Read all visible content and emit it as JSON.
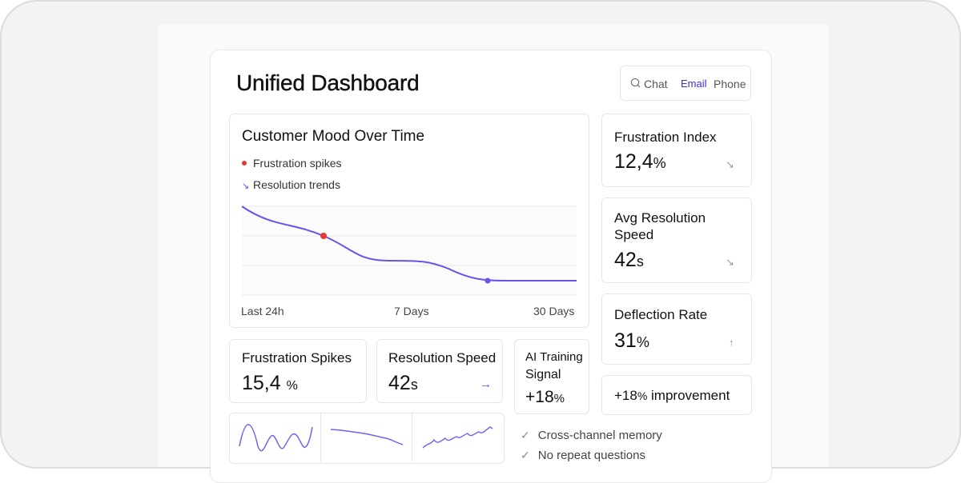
{
  "header": {
    "title": "Unified Dashboard"
  },
  "channel_tabs": [
    {
      "label": "Chat",
      "icon": "search-icon"
    },
    {
      "label": "Email",
      "active": true
    },
    {
      "label": "Phone"
    }
  ],
  "mood_chart": {
    "title": "Customer Mood Over Time",
    "legend": [
      {
        "label": "Frustration spikes",
        "color": "#e53935"
      },
      {
        "label": "Resolution trends",
        "color": "#5b48e8"
      }
    ],
    "x_labels": [
      "Last 24h",
      "7 Days",
      "30 Days"
    ]
  },
  "side_metrics": {
    "frustration_index": {
      "label": "Frustration Index",
      "value": "12,4",
      "unit": "%",
      "arrow": "↘"
    },
    "avg_resolution": {
      "label_line1": "Avg Resolution",
      "label_line2": "Speed",
      "value": "42",
      "unit": "s",
      "arrow": "↘"
    },
    "deflection": {
      "label": "Deflection Rate",
      "value": "31",
      "unit": "%",
      "arrow": "↑"
    },
    "improvement": {
      "value": "+18",
      "unit": "%",
      "label": "improvement"
    }
  },
  "bottom_metrics": {
    "frustration_spikes": {
      "label": "Frustration Spikes",
      "value": "15,4",
      "unit": "%"
    },
    "resolution_speed": {
      "label": "Resolution Speed",
      "value": "42",
      "unit": "s",
      "arrow": "→"
    },
    "ai_training": {
      "label_line1": "AI Training",
      "label_line2": "Signal",
      "value": "+18",
      "unit": "%"
    }
  },
  "features": [
    {
      "label": "Cross-channel memory"
    },
    {
      "label": "No repeat questions"
    }
  ],
  "colors": {
    "accent": "#5b48e8",
    "spike": "#e53935"
  }
}
